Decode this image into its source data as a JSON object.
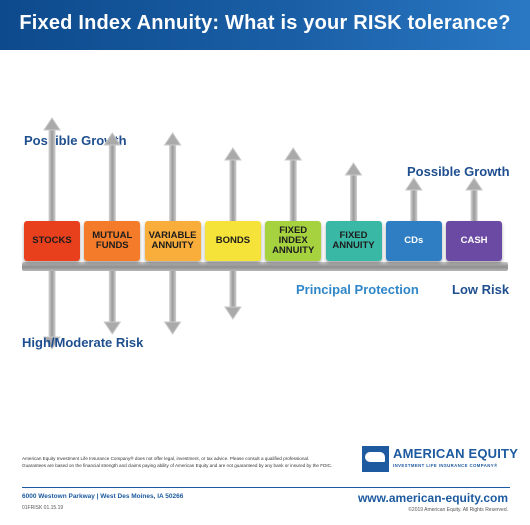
{
  "header": {
    "title": "Fixed Index Annuity: What is your RISK tolerance?"
  },
  "labels": {
    "growth_left": "Possible Growth",
    "growth_right": "Possible Growth",
    "risk_high": "High/Moderate Risk",
    "principal_protection": "Principal Protection",
    "risk_low": "Low Risk"
  },
  "products": [
    {
      "line1": "STOCKS",
      "line2": "",
      "line3": "",
      "color": "#e8401c",
      "up": 5,
      "down": 5
    },
    {
      "line1": "MUTUAL",
      "line2": "FUNDS",
      "line3": "",
      "color": "#f47b29",
      "up": 4,
      "down": 4
    },
    {
      "line1": "VARIABLE",
      "line2": "ANNUITY",
      "line3": "",
      "color": "#f9ad3a",
      "up": 4,
      "down": 4
    },
    {
      "line1": "BONDS",
      "line2": "",
      "line3": "",
      "color": "#f5e33a",
      "up": 3,
      "down": 3
    },
    {
      "line1": "FIXED",
      "line2": "INDEX",
      "line3": "ANNUITY",
      "color": "#a6d23f",
      "up": 3,
      "down": 0
    },
    {
      "line1": "FIXED",
      "line2": "ANNUITY",
      "line3": "",
      "color": "#3ab8a6",
      "up": 2,
      "down": 0
    },
    {
      "line1": "CDs",
      "line2": "",
      "line3": "",
      "color": "#2f7ec4",
      "up": 1,
      "down": 0
    },
    {
      "line1": "CASH",
      "line2": "",
      "line3": "",
      "color": "#6a4aa3",
      "up": 1,
      "down": 0
    }
  ],
  "footer": {
    "disclaimer_1": "American Equity Investment Life Insurance Company® does not offer legal, investment, or tax advice. Please consult a qualified professional.",
    "disclaimer_2": "Guarantees are based on the financial strength and claims paying ability of American Equity and are not guaranteed by any bank or insured by the FDIC.",
    "logo_name": "AMERICAN EQUITY",
    "logo_sub": "INVESTMENT LIFE INSURANCE COMPANY®",
    "address": "6000 Westown Parkway  |  West Des Moines, IA 50266",
    "code": "01FRISK 01.15.19",
    "website": "www.american-equity.com",
    "copyright": "©2019 American Equity. All Rights Reserved."
  }
}
